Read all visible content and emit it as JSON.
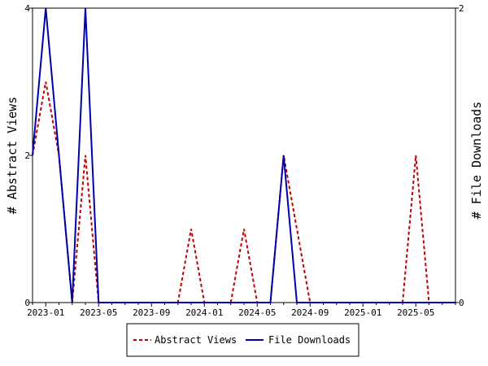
{
  "chart_data": {
    "type": "line",
    "title": "",
    "xlabel": "",
    "ylabel_left": "# Abstract Views",
    "ylabel_right": "# File Downloads",
    "x_tick_labels": [
      "2023-01",
      "2023-05",
      "2023-09",
      "2024-01",
      "2024-05",
      "2024-09",
      "2025-01",
      "2025-05"
    ],
    "y_left_ticks": [
      "0",
      "2",
      "4"
    ],
    "y_right_ticks": [
      "0",
      "2"
    ],
    "ylim_left": [
      0,
      4
    ],
    "ylim_right": [
      0,
      2
    ],
    "x_months": [
      "2022-12",
      "2023-01",
      "2023-02",
      "2023-03",
      "2023-04",
      "2023-05",
      "2023-06",
      "2023-07",
      "2023-08",
      "2023-09",
      "2023-10",
      "2023-11",
      "2023-12",
      "2024-01",
      "2024-02",
      "2024-03",
      "2024-04",
      "2024-05",
      "2024-06",
      "2024-07",
      "2024-08",
      "2024-09",
      "2024-10",
      "2024-11",
      "2024-12",
      "2025-01",
      "2025-02",
      "2025-03",
      "2025-04",
      "2025-05",
      "2025-06",
      "2025-07",
      "2025-08"
    ],
    "grid": false,
    "legend_placement": "bottom",
    "series": [
      {
        "name": "Abstract Views",
        "axis": "left",
        "color": "#c00000",
        "style": "dashed",
        "values": [
          2,
          3,
          2,
          0,
          2,
          0,
          0,
          0,
          0,
          0,
          0,
          0,
          1,
          0,
          0,
          0,
          1,
          0,
          0,
          2,
          1,
          0,
          0,
          0,
          0,
          0,
          0,
          0,
          0,
          2,
          0,
          0,
          0
        ]
      },
      {
        "name": "File Downloads",
        "axis": "right",
        "color": "#0000aa",
        "style": "solid",
        "values": [
          1,
          2,
          1,
          0,
          2,
          0,
          0,
          0,
          0,
          0,
          0,
          0,
          0,
          0,
          0,
          0,
          0,
          0,
          0,
          1,
          0,
          0,
          0,
          0,
          0,
          0,
          0,
          0,
          0,
          0,
          0,
          0,
          0
        ]
      }
    ]
  }
}
